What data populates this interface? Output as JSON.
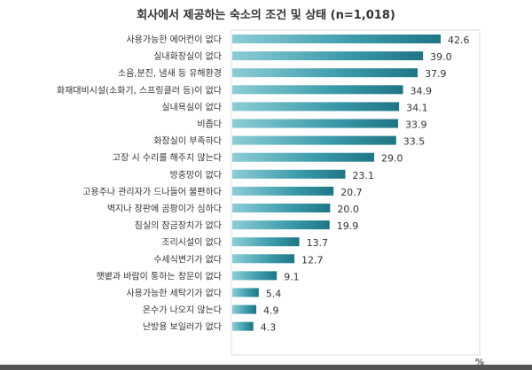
{
  "chart_data": {
    "type": "bar",
    "orientation": "horizontal",
    "title": "회사에서 제공하는 숙소의 조건 및 상태 (n=1,018)",
    "unit": "%",
    "categories": [
      "사용가능한 에어컨이 없다",
      "실내화장실이 없다",
      "소음,분진, 냄새 등 유해환경",
      "화재대비시설(소화기, 스프링클러 등)이 없다",
      "실내욕실이 없다",
      "비좁다",
      "화장실이 부족하다",
      "고장 시 수리를 해주지 않는다",
      "방충망이 없다",
      "고용주나 관리자가 드나들어 불편하다",
      "벽지나 장판에 곰팡이가 심하다",
      "침실의 잠금장치가 없다",
      "조리시설이 없다",
      "수세식변기가 없다",
      "햇볕과 바람이 통하는 창문이 없다",
      "사용가능한 세탁기가 없다",
      "온수가 나오지 않는다",
      "난방용 보일러가 없다"
    ],
    "values": [
      42.6,
      39.0,
      37.9,
      34.9,
      34.1,
      33.9,
      33.5,
      29.0,
      23.1,
      20.7,
      20.0,
      19.9,
      13.7,
      12.7,
      9.1,
      5.4,
      4.9,
      4.3
    ],
    "value_labels": [
      "42.6",
      "39.0",
      "37.9",
      "34.9",
      "34.1",
      "33.9",
      "33.5",
      "29.0",
      "23.1",
      "20.7",
      "20.0",
      "19.9",
      "13.7",
      "12.7",
      "9.1",
      "5.4",
      "4.9",
      "4.3"
    ],
    "xlim": [
      0,
      50
    ],
    "grid": false,
    "bar_color": "#3a9aaa"
  }
}
